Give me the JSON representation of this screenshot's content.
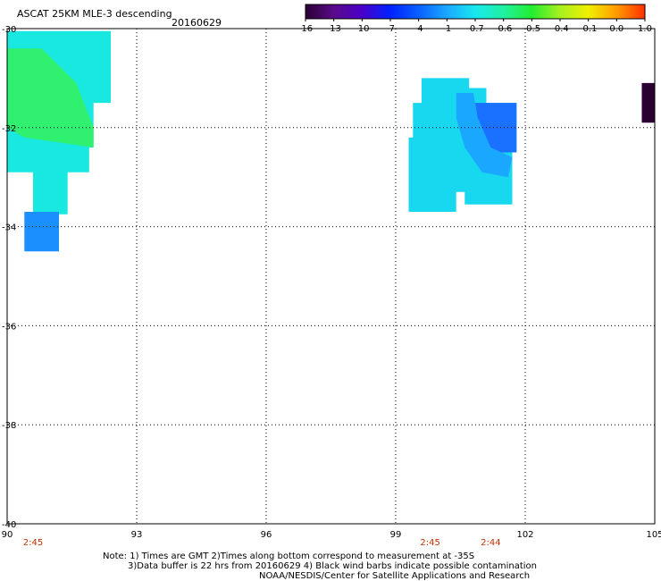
{
  "header": {
    "title": "ASCAT 25KM MLE-3 descending",
    "date": "20160629"
  },
  "colorbar": {
    "labels": [
      "-16",
      "-13",
      "-10",
      "-7",
      "-4",
      "-1",
      "-0.7",
      "-0.6",
      "-0.5",
      "-0.4",
      "-0.1",
      "0.0",
      "1.0"
    ],
    "colors": [
      "#2a0033",
      "#5a0a8a",
      "#4a00c8",
      "#0022ff",
      "#0a60ff",
      "#1aa8ff",
      "#18e8f0",
      "#20f0a0",
      "#22ee30",
      "#a8f020",
      "#f0f000",
      "#ff9a00",
      "#ff3000"
    ]
  },
  "axes": {
    "x_ticks": [
      "90",
      "93",
      "96",
      "99",
      "102",
      "105"
    ],
    "y_ticks": [
      "-30",
      "-32",
      "-34",
      "-36",
      "-38",
      "-40"
    ],
    "lon_range": [
      90,
      105
    ],
    "lat_range": [
      -40,
      -30
    ]
  },
  "time_labels": [
    {
      "text": "2:45",
      "lon": 90.6
    },
    {
      "text": "2:45",
      "lon": 99.8
    },
    {
      "text": "2:44",
      "lon": 101.2
    }
  ],
  "notes": {
    "line1": "Note: 1) Times are GMT 2)Times along bottom correspond to measurement at -35S",
    "line2": "3)Data buffer is 22 hrs from 20160629 4) Black wind barbs indicate possible contamination",
    "line3": "NOAA/NESDIS/Center for Satellite Applications and Research"
  },
  "swaths": [
    {
      "name": "west-swath",
      "polygon": [
        [
          90,
          -30.05
        ],
        [
          92.4,
          -30.05
        ],
        [
          92.4,
          -31.5
        ],
        [
          92.0,
          -31.5
        ],
        [
          92.0,
          -32.4
        ],
        [
          91.9,
          -32.4
        ],
        [
          91.9,
          -32.9
        ],
        [
          91.4,
          -32.9
        ],
        [
          91.4,
          -33.75
        ],
        [
          90.6,
          -33.75
        ],
        [
          90.6,
          -32.9
        ],
        [
          90,
          -32.9
        ]
      ],
      "color": "#18e8e0"
    },
    {
      "name": "west-green-patch",
      "polygon": [
        [
          90,
          -30.4
        ],
        [
          90.8,
          -30.4
        ],
        [
          91.6,
          -31.1
        ],
        [
          92.0,
          -32.0
        ],
        [
          92.0,
          -32.4
        ],
        [
          91.2,
          -32.3
        ],
        [
          90.4,
          -32.2
        ],
        [
          90,
          -32.0
        ]
      ],
      "color": "#30f070"
    },
    {
      "name": "west-blue-block",
      "polygon": [
        [
          90.4,
          -33.7
        ],
        [
          91.2,
          -33.7
        ],
        [
          91.2,
          -34.5
        ],
        [
          90.4,
          -34.5
        ]
      ],
      "color": "#1a90ff"
    },
    {
      "name": "east-swath",
      "polygon": [
        [
          99.6,
          -31.0
        ],
        [
          100.7,
          -31.0
        ],
        [
          100.7,
          -31.2
        ],
        [
          101.1,
          -31.2
        ],
        [
          101.1,
          -31.5
        ],
        [
          101.8,
          -31.5
        ],
        [
          101.8,
          -32.5
        ],
        [
          101.7,
          -32.5
        ],
        [
          101.7,
          -33.55
        ],
        [
          100.6,
          -33.55
        ],
        [
          100.6,
          -33.3
        ],
        [
          100.4,
          -33.3
        ],
        [
          100.4,
          -33.7
        ],
        [
          99.3,
          -33.7
        ],
        [
          99.3,
          -32.2
        ],
        [
          99.4,
          -32.2
        ],
        [
          99.4,
          -31.5
        ],
        [
          99.6,
          -31.5
        ]
      ],
      "color": "#18d8f0"
    },
    {
      "name": "east-deep-blue",
      "polygon": [
        [
          100.7,
          -31.5
        ],
        [
          101.8,
          -31.5
        ],
        [
          101.8,
          -32.5
        ],
        [
          101.2,
          -32.5
        ],
        [
          101.0,
          -32.0
        ],
        [
          100.7,
          -31.8
        ]
      ],
      "color": "#1a70ff"
    },
    {
      "name": "east-mid-blue",
      "polygon": [
        [
          100.4,
          -31.3
        ],
        [
          100.8,
          -31.3
        ],
        [
          100.9,
          -31.8
        ],
        [
          101.2,
          -32.4
        ],
        [
          101.7,
          -32.6
        ],
        [
          101.6,
          -33.0
        ],
        [
          101.0,
          -32.9
        ],
        [
          100.6,
          -32.4
        ],
        [
          100.4,
          -31.8
        ]
      ],
      "color": "#1aa8ff"
    },
    {
      "name": "edge-dark-block",
      "polygon": [
        [
          104.7,
          -31.1
        ],
        [
          105,
          -31.1
        ],
        [
          105,
          -31.9
        ],
        [
          104.7,
          -31.9
        ]
      ],
      "color": "#2a0033"
    }
  ]
}
